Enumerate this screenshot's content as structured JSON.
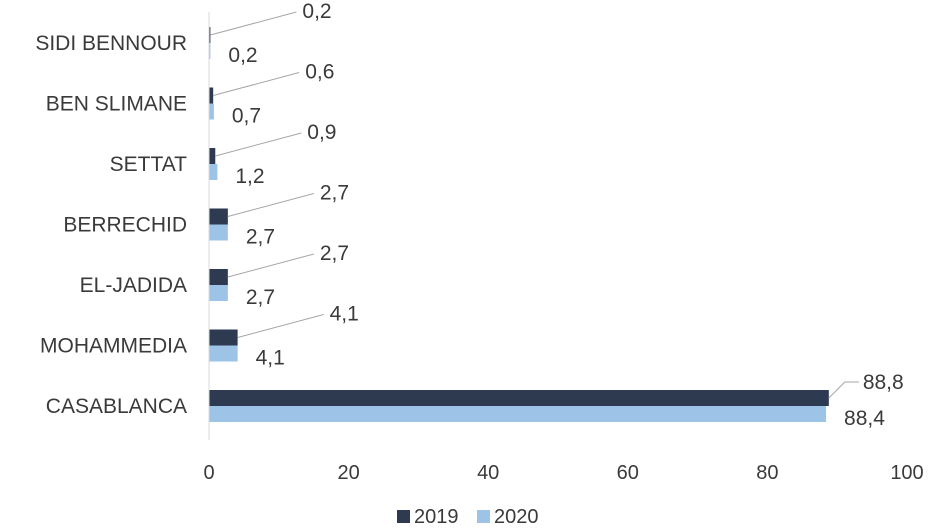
{
  "chart_data": {
    "type": "bar",
    "orientation": "horizontal",
    "categories": [
      "CASABLANCA",
      "MOHAMMEDIA",
      "EL-JADIDA",
      "BERRECHID",
      "SETTAT",
      "BEN SLIMANE",
      "SIDI BENNOUR"
    ],
    "series": [
      {
        "name": "2019",
        "color": "#2d3a4f",
        "values": [
          88.8,
          4.1,
          2.7,
          2.7,
          0.9,
          0.6,
          0.2
        ],
        "labels": [
          "88,8",
          "4,1",
          "2,7",
          "2,7",
          "0,9",
          "0,6",
          "0,2"
        ]
      },
      {
        "name": "2020",
        "color": "#9dc3e6",
        "values": [
          88.4,
          4.1,
          2.7,
          2.7,
          1.2,
          0.7,
          0.2
        ],
        "labels": [
          "88,4",
          "4,1",
          "2,7",
          "2,7",
          "1,2",
          "0,7",
          "0,2"
        ]
      }
    ],
    "xlim": [
      0,
      100
    ],
    "xticks": [
      "0",
      "20",
      "40",
      "60",
      "80",
      "100"
    ],
    "grid": false,
    "legend_position": "bottom"
  }
}
